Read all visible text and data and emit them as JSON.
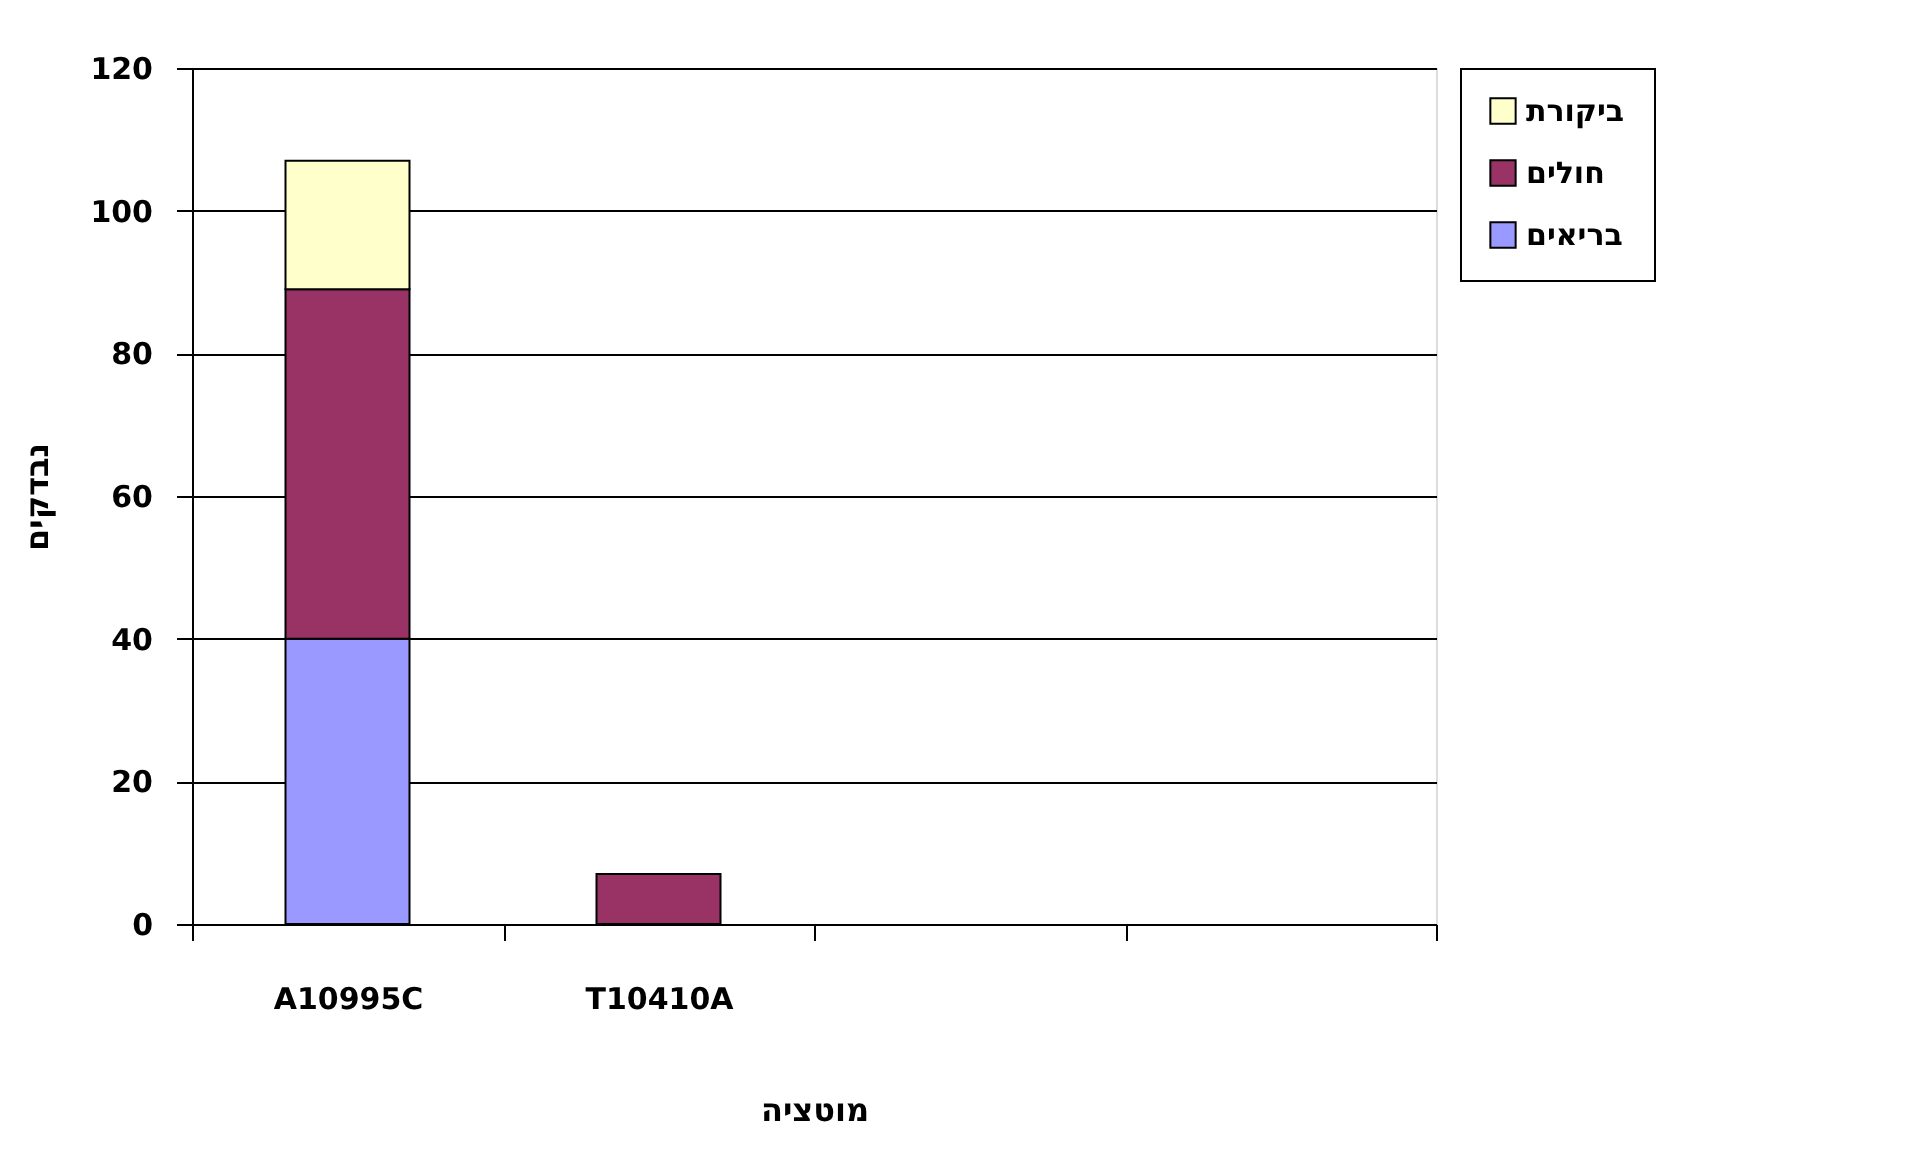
{
  "chart_data": {
    "type": "bar",
    "stacked": true,
    "categories": [
      "A10995C",
      "T10410A",
      null,
      null
    ],
    "xlabel": "מוטציה",
    "ylabel": "נבדקים",
    "series": [
      {
        "name": "בריאים",
        "color": "#9999ff",
        "values": [
          40,
          null,
          null,
          null
        ]
      },
      {
        "name": "חולים",
        "color": "#993366",
        "values": [
          49,
          7,
          null,
          null
        ]
      },
      {
        "name": "ביקורת",
        "color": "#ffffcc",
        "values": [
          18,
          null,
          null,
          null
        ]
      }
    ],
    "ylim": [
      0,
      120
    ],
    "yticks": [
      0,
      20,
      40,
      60,
      80,
      100,
      120
    ],
    "grid": "y",
    "legend": "right"
  }
}
